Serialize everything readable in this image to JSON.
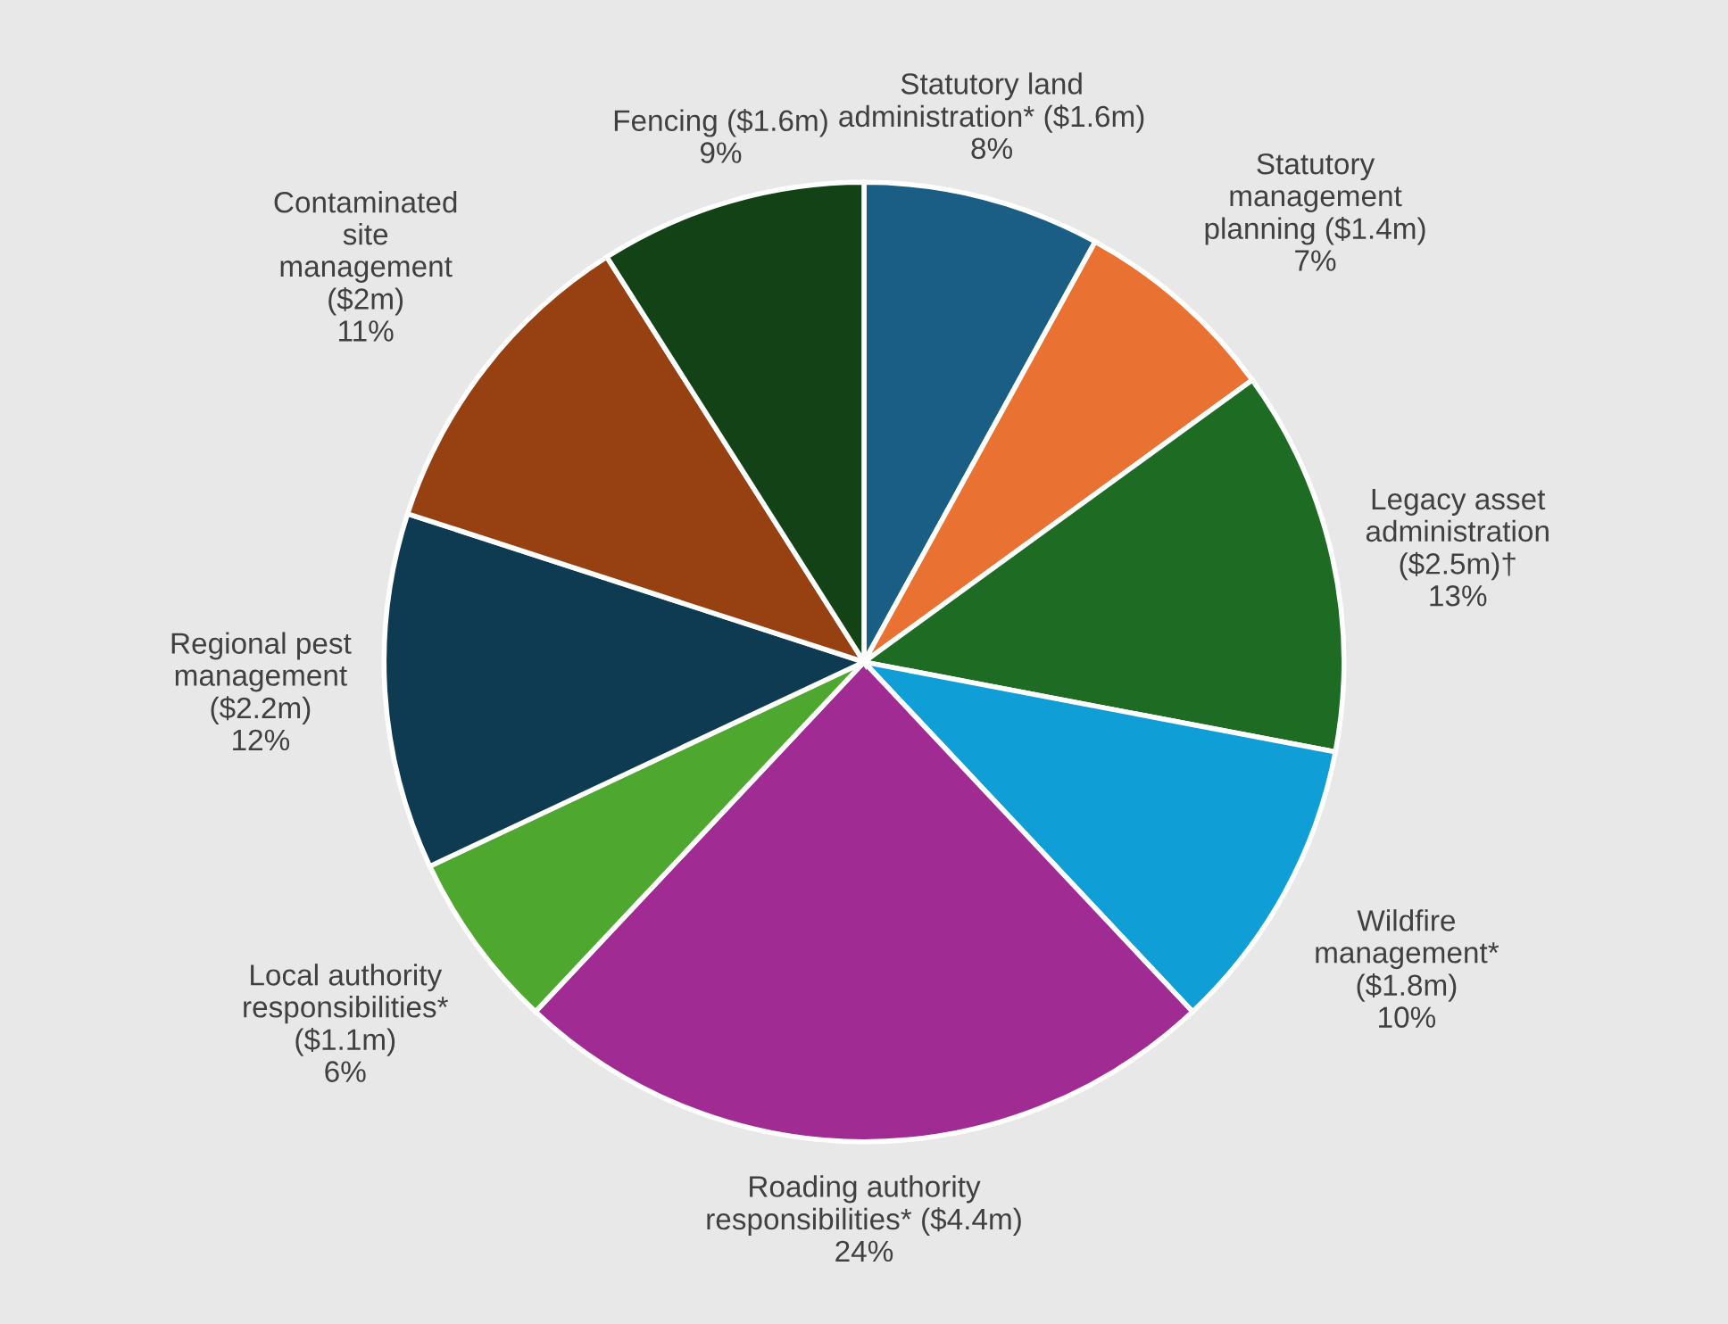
{
  "chart_data": {
    "type": "pie",
    "categories": [
      "Statutory land\nadministration* ($1.6m)",
      "Statutory\nmanagement\nplanning ($1.4m)",
      "Legacy asset\nadministration\n($2.5m)†",
      "Wildfire\nmanagement*\n($1.8m)",
      "Roading authority\nresponsibilities* ($4.4m)",
      "Local authority\nresponsibilities*\n($1.1m)",
      "Regional pest\nmanagement\n($2.2m)",
      "Contaminated\nsite\nmanagement\n($2m)",
      "Fencing ($1.6m)"
    ],
    "values": [
      8,
      7,
      13,
      10,
      24,
      6,
      12,
      11,
      9
    ],
    "value_labels": [
      "8%",
      "7%",
      "13%",
      "10%",
      "24%",
      "6%",
      "12%",
      "11%",
      "9%"
    ],
    "colors": [
      "#1a5e85",
      "#e97132",
      "#1e6b24",
      "#0f9ed5",
      "#a02b93",
      "#4ea72e",
      "#0e3a52",
      "#974011",
      "#124216"
    ],
    "legend": false
  }
}
